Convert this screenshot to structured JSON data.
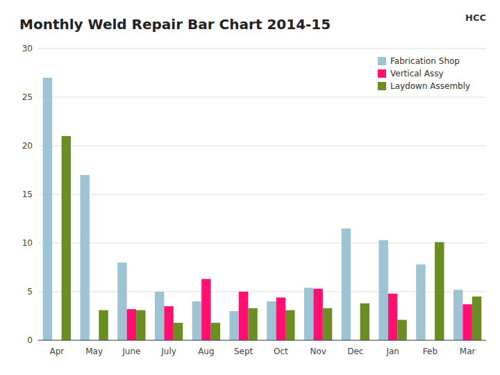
{
  "chart_data": {
    "type": "bar",
    "title": "Monthly Weld Repair Bar Chart 2014-15",
    "annotations": [
      "HCC"
    ],
    "categories": [
      "Apr",
      "May",
      "June",
      "July",
      "Aug",
      "Sept",
      "Oct",
      "Nov",
      "Dec",
      "Jan",
      "Feb",
      "Mar"
    ],
    "series": [
      {
        "name": "Fabrication Shop",
        "color": "#9DC3D4",
        "values": [
          27,
          17,
          8,
          5,
          4,
          3,
          4,
          5.4,
          11.5,
          10.3,
          7.8,
          5.2
        ]
      },
      {
        "name": "Vertical Assy",
        "color": "#FF1070",
        "values": [
          0,
          0,
          3.2,
          3.5,
          6.3,
          5.0,
          4.4,
          5.3,
          0,
          4.8,
          0,
          3.7
        ]
      },
      {
        "name": "Laydown Assembly",
        "color": "#6B8E23",
        "values": [
          21,
          3.1,
          3.1,
          1.8,
          1.8,
          3.3,
          3.1,
          3.3,
          3.8,
          2.1,
          10.1,
          4.5
        ]
      }
    ],
    "ylim": [
      0,
      30
    ],
    "yticks": [
      0,
      5,
      10,
      15,
      20,
      25,
      30
    ],
    "grid": true,
    "legend": "upper right"
  }
}
